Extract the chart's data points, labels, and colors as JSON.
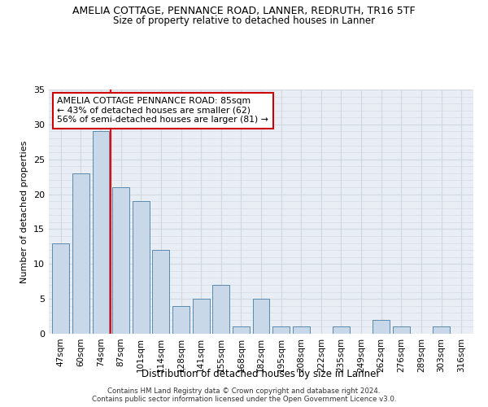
{
  "title": "AMELIA COTTAGE, PENNANCE ROAD, LANNER, REDRUTH, TR16 5TF",
  "subtitle": "Size of property relative to detached houses in Lanner",
  "xlabel": "Distribution of detached houses by size in Lanner",
  "ylabel": "Number of detached properties",
  "categories": [
    "47sqm",
    "60sqm",
    "74sqm",
    "87sqm",
    "101sqm",
    "114sqm",
    "128sqm",
    "141sqm",
    "155sqm",
    "168sqm",
    "182sqm",
    "195sqm",
    "208sqm",
    "222sqm",
    "235sqm",
    "249sqm",
    "262sqm",
    "276sqm",
    "289sqm",
    "303sqm",
    "316sqm"
  ],
  "values": [
    13,
    23,
    29,
    21,
    19,
    12,
    4,
    5,
    7,
    1,
    5,
    1,
    1,
    0,
    1,
    0,
    2,
    1,
    0,
    1,
    0
  ],
  "bar_color": "#c8d8e8",
  "bar_edge_color": "#5a8ab0",
  "annotation_text": "AMELIA COTTAGE PENNANCE ROAD: 85sqm\n← 43% of detached houses are smaller (62)\n56% of semi-detached houses are larger (81) →",
  "annotation_box_color": "#ffffff",
  "annotation_box_edge": "#cc0000",
  "ylim": [
    0,
    35
  ],
  "yticks": [
    0,
    5,
    10,
    15,
    20,
    25,
    30,
    35
  ],
  "grid_color": "#d0d8e0",
  "footer_line1": "Contains HM Land Registry data © Crown copyright and database right 2024.",
  "footer_line2": "Contains public sector information licensed under the Open Government Licence v3.0.",
  "bg_color": "#e8eef4",
  "title_fontsize": 9,
  "subtitle_fontsize": 8.5
}
